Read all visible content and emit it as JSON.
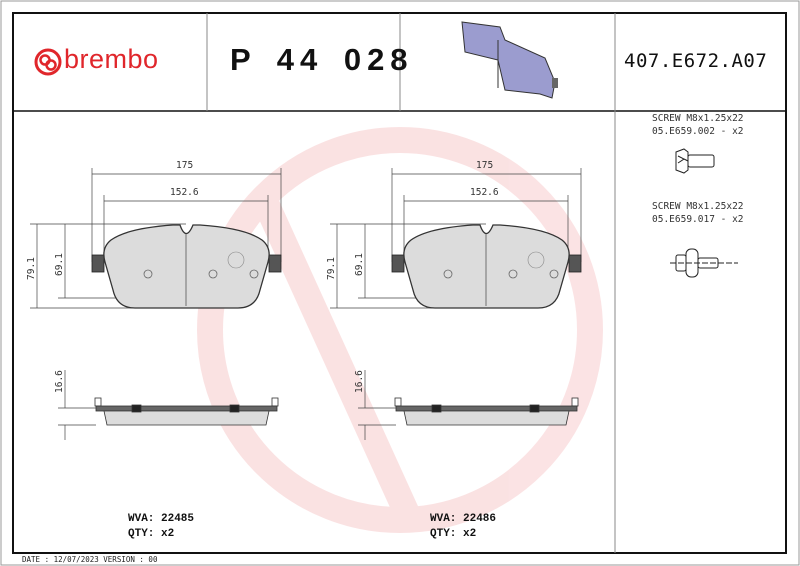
{
  "header": {
    "brand": "brembo",
    "part_number": "P 44 028",
    "reference": "407.E672.A07"
  },
  "accessories": [
    {
      "name": "SCREW M8x1.25x22",
      "code": "05.E659.002 - x2"
    },
    {
      "name": "SCREW M8x1.25x22",
      "code": "05.E659.017 - x2"
    }
  ],
  "pads": [
    {
      "width_outer": "175",
      "width_inner": "152.6",
      "height_outer": "79.1",
      "height_inner": "69.1",
      "thickness": "16.6",
      "wva": "WVA: 22485",
      "qty": "QTY: x2"
    },
    {
      "width_outer": "175",
      "width_inner": "152.6",
      "height_outer": "79.1",
      "height_inner": "69.1",
      "thickness": "16.6",
      "wva": "WVA: 22486",
      "qty": "QTY: x2"
    }
  ],
  "footer": {
    "text": "DATE : 12/07/2023 VERSION : 00"
  },
  "colors": {
    "brand": "#e0262b",
    "pad_fill": "#dcdcdc",
    "pad_preview": "#9b9ccf"
  }
}
